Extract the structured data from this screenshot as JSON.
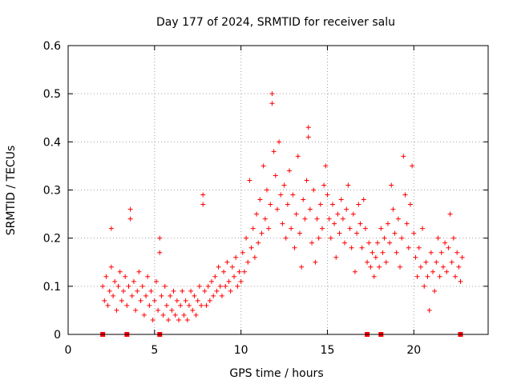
{
  "chart_data": {
    "type": "scatter",
    "title": "Day 177 of 2024, SRMTID for receiver salu",
    "xlabel": "GPS time / hours",
    "ylabel": "SRMTID / TECUs",
    "xlim": [
      0,
      24.3
    ],
    "ylim": [
      0,
      0.6
    ],
    "xticks": [
      0,
      5,
      10,
      15,
      20
    ],
    "yticks": [
      0,
      0.1,
      0.2,
      0.3,
      0.4,
      0.5,
      0.6
    ],
    "xtick_labels": [
      "0",
      "5",
      "10",
      "15",
      "20"
    ],
    "ytick_labels": [
      "0",
      "0.1",
      "0.2",
      "0.3",
      "0.4",
      "0.5",
      "0.6"
    ],
    "grid": true,
    "marker": "plus",
    "color": "#ff0000",
    "series": [
      {
        "name": "SRMTID",
        "points": [
          [
            2.0,
            0.1
          ],
          [
            2.1,
            0.07
          ],
          [
            2.2,
            0.12
          ],
          [
            2.3,
            0.06
          ],
          [
            2.4,
            0.09
          ],
          [
            2.5,
            0.14
          ],
          [
            2.5,
            0.22
          ],
          [
            2.6,
            0.08
          ],
          [
            2.7,
            0.11
          ],
          [
            2.8,
            0.05
          ],
          [
            2.9,
            0.1
          ],
          [
            3.0,
            0.13
          ],
          [
            3.1,
            0.07
          ],
          [
            3.2,
            0.09
          ],
          [
            3.3,
            0.12
          ],
          [
            3.4,
            0.06
          ],
          [
            3.5,
            0.1
          ],
          [
            3.6,
            0.26
          ],
          [
            3.6,
            0.24
          ],
          [
            3.7,
            0.08
          ],
          [
            3.8,
            0.11
          ],
          [
            3.9,
            0.05
          ],
          [
            4.0,
            0.09
          ],
          [
            4.1,
            0.13
          ],
          [
            4.2,
            0.07
          ],
          [
            4.3,
            0.1
          ],
          [
            4.4,
            0.04
          ],
          [
            4.5,
            0.08
          ],
          [
            4.6,
            0.12
          ],
          [
            4.7,
            0.06
          ],
          [
            4.8,
            0.09
          ],
          [
            4.9,
            0.03
          ],
          [
            5.0,
            0.07
          ],
          [
            5.1,
            0.11
          ],
          [
            5.2,
            0.05
          ],
          [
            5.3,
            0.2
          ],
          [
            5.3,
            0.17
          ],
          [
            5.4,
            0.08
          ],
          [
            5.5,
            0.04
          ],
          [
            5.6,
            0.1
          ],
          [
            5.7,
            0.06
          ],
          [
            5.8,
            0.03
          ],
          [
            5.9,
            0.08
          ],
          [
            6.0,
            0.05
          ],
          [
            6.1,
            0.09
          ],
          [
            6.2,
            0.04
          ],
          [
            6.3,
            0.07
          ],
          [
            6.4,
            0.03
          ],
          [
            6.5,
            0.06
          ],
          [
            6.6,
            0.09
          ],
          [
            6.7,
            0.04
          ],
          [
            6.8,
            0.07
          ],
          [
            6.9,
            0.03
          ],
          [
            7.0,
            0.06
          ],
          [
            7.1,
            0.09
          ],
          [
            7.2,
            0.05
          ],
          [
            7.3,
            0.08
          ],
          [
            7.4,
            0.04
          ],
          [
            7.5,
            0.07
          ],
          [
            7.6,
            0.1
          ],
          [
            7.7,
            0.06
          ],
          [
            7.8,
            0.29
          ],
          [
            7.8,
            0.27
          ],
          [
            7.9,
            0.09
          ],
          [
            8.0,
            0.06
          ],
          [
            8.1,
            0.1
          ],
          [
            8.2,
            0.07
          ],
          [
            8.3,
            0.11
          ],
          [
            8.4,
            0.08
          ],
          [
            8.5,
            0.12
          ],
          [
            8.6,
            0.09
          ],
          [
            8.7,
            0.14
          ],
          [
            8.8,
            0.1
          ],
          [
            8.9,
            0.08
          ],
          [
            9.0,
            0.13
          ],
          [
            9.1,
            0.1
          ],
          [
            9.2,
            0.15
          ],
          [
            9.3,
            0.11
          ],
          [
            9.4,
            0.09
          ],
          [
            9.5,
            0.14
          ],
          [
            9.6,
            0.12
          ],
          [
            9.7,
            0.16
          ],
          [
            9.8,
            0.1
          ],
          [
            9.9,
            0.13
          ],
          [
            10.0,
            0.11
          ],
          [
            10.1,
            0.17
          ],
          [
            10.2,
            0.13
          ],
          [
            10.3,
            0.2
          ],
          [
            10.4,
            0.15
          ],
          [
            10.5,
            0.32
          ],
          [
            10.6,
            0.18
          ],
          [
            10.7,
            0.22
          ],
          [
            10.8,
            0.16
          ],
          [
            10.9,
            0.25
          ],
          [
            11.0,
            0.19
          ],
          [
            11.1,
            0.28
          ],
          [
            11.2,
            0.21
          ],
          [
            11.3,
            0.35
          ],
          [
            11.4,
            0.24
          ],
          [
            11.5,
            0.3
          ],
          [
            11.6,
            0.22
          ],
          [
            11.7,
            0.27
          ],
          [
            11.8,
            0.5
          ],
          [
            11.8,
            0.48
          ],
          [
            11.9,
            0.38
          ],
          [
            12.0,
            0.33
          ],
          [
            12.1,
            0.26
          ],
          [
            12.2,
            0.4
          ],
          [
            12.3,
            0.29
          ],
          [
            12.4,
            0.23
          ],
          [
            12.5,
            0.31
          ],
          [
            12.6,
            0.2
          ],
          [
            12.7,
            0.27
          ],
          [
            12.8,
            0.34
          ],
          [
            12.9,
            0.22
          ],
          [
            13.0,
            0.29
          ],
          [
            13.1,
            0.18
          ],
          [
            13.2,
            0.25
          ],
          [
            13.3,
            0.37
          ],
          [
            13.4,
            0.21
          ],
          [
            13.5,
            0.14
          ],
          [
            13.6,
            0.28
          ],
          [
            13.7,
            0.24
          ],
          [
            13.8,
            0.32
          ],
          [
            13.9,
            0.43
          ],
          [
            13.9,
            0.41
          ],
          [
            14.0,
            0.26
          ],
          [
            14.1,
            0.19
          ],
          [
            14.2,
            0.3
          ],
          [
            14.3,
            0.15
          ],
          [
            14.4,
            0.24
          ],
          [
            14.5,
            0.2
          ],
          [
            14.6,
            0.27
          ],
          [
            14.7,
            0.22
          ],
          [
            14.8,
            0.31
          ],
          [
            14.9,
            0.35
          ],
          [
            15.0,
            0.29
          ],
          [
            15.1,
            0.24
          ],
          [
            15.2,
            0.2
          ],
          [
            15.3,
            0.27
          ],
          [
            15.4,
            0.23
          ],
          [
            15.5,
            0.16
          ],
          [
            15.6,
            0.25
          ],
          [
            15.7,
            0.21
          ],
          [
            15.8,
            0.28
          ],
          [
            15.9,
            0.24
          ],
          [
            16.0,
            0.19
          ],
          [
            16.1,
            0.26
          ],
          [
            16.2,
            0.31
          ],
          [
            16.3,
            0.22
          ],
          [
            16.4,
            0.18
          ],
          [
            16.5,
            0.25
          ],
          [
            16.6,
            0.13
          ],
          [
            16.7,
            0.21
          ],
          [
            16.8,
            0.27
          ],
          [
            16.9,
            0.23
          ],
          [
            17.0,
            0.18
          ],
          [
            17.1,
            0.28
          ],
          [
            17.2,
            0.22
          ],
          [
            17.3,
            0.15
          ],
          [
            17.4,
            0.19
          ],
          [
            17.5,
            0.14
          ],
          [
            17.6,
            0.17
          ],
          [
            17.7,
            0.12
          ],
          [
            17.8,
            0.16
          ],
          [
            17.9,
            0.19
          ],
          [
            18.0,
            0.14
          ],
          [
            18.1,
            0.22
          ],
          [
            18.2,
            0.17
          ],
          [
            18.3,
            0.2
          ],
          [
            18.4,
            0.15
          ],
          [
            18.5,
            0.23
          ],
          [
            18.6,
            0.19
          ],
          [
            18.7,
            0.31
          ],
          [
            18.8,
            0.26
          ],
          [
            18.9,
            0.21
          ],
          [
            19.0,
            0.17
          ],
          [
            19.1,
            0.24
          ],
          [
            19.2,
            0.14
          ],
          [
            19.3,
            0.2
          ],
          [
            19.4,
            0.37
          ],
          [
            19.5,
            0.29
          ],
          [
            19.6,
            0.23
          ],
          [
            19.7,
            0.18
          ],
          [
            19.8,
            0.27
          ],
          [
            19.9,
            0.35
          ],
          [
            20.0,
            0.21
          ],
          [
            20.1,
            0.16
          ],
          [
            20.2,
            0.12
          ],
          [
            20.3,
            0.18
          ],
          [
            20.4,
            0.14
          ],
          [
            20.5,
            0.22
          ],
          [
            20.6,
            0.1
          ],
          [
            20.7,
            0.15
          ],
          [
            20.8,
            0.12
          ],
          [
            20.9,
            0.05
          ],
          [
            21.0,
            0.17
          ],
          [
            21.1,
            0.13
          ],
          [
            21.2,
            0.09
          ],
          [
            21.3,
            0.15
          ],
          [
            21.4,
            0.2
          ],
          [
            21.5,
            0.12
          ],
          [
            21.6,
            0.17
          ],
          [
            21.7,
            0.14
          ],
          [
            21.8,
            0.19
          ],
          [
            21.9,
            0.13
          ],
          [
            22.0,
            0.18
          ],
          [
            22.1,
            0.25
          ],
          [
            22.2,
            0.15
          ],
          [
            22.3,
            0.2
          ],
          [
            22.4,
            0.12
          ],
          [
            22.5,
            0.17
          ],
          [
            22.6,
            0.14
          ],
          [
            22.7,
            0.11
          ],
          [
            22.8,
            0.16
          ]
        ]
      }
    ],
    "gap_markers": [
      2.0,
      3.4,
      5.3,
      17.3,
      18.1,
      22.7
    ]
  }
}
